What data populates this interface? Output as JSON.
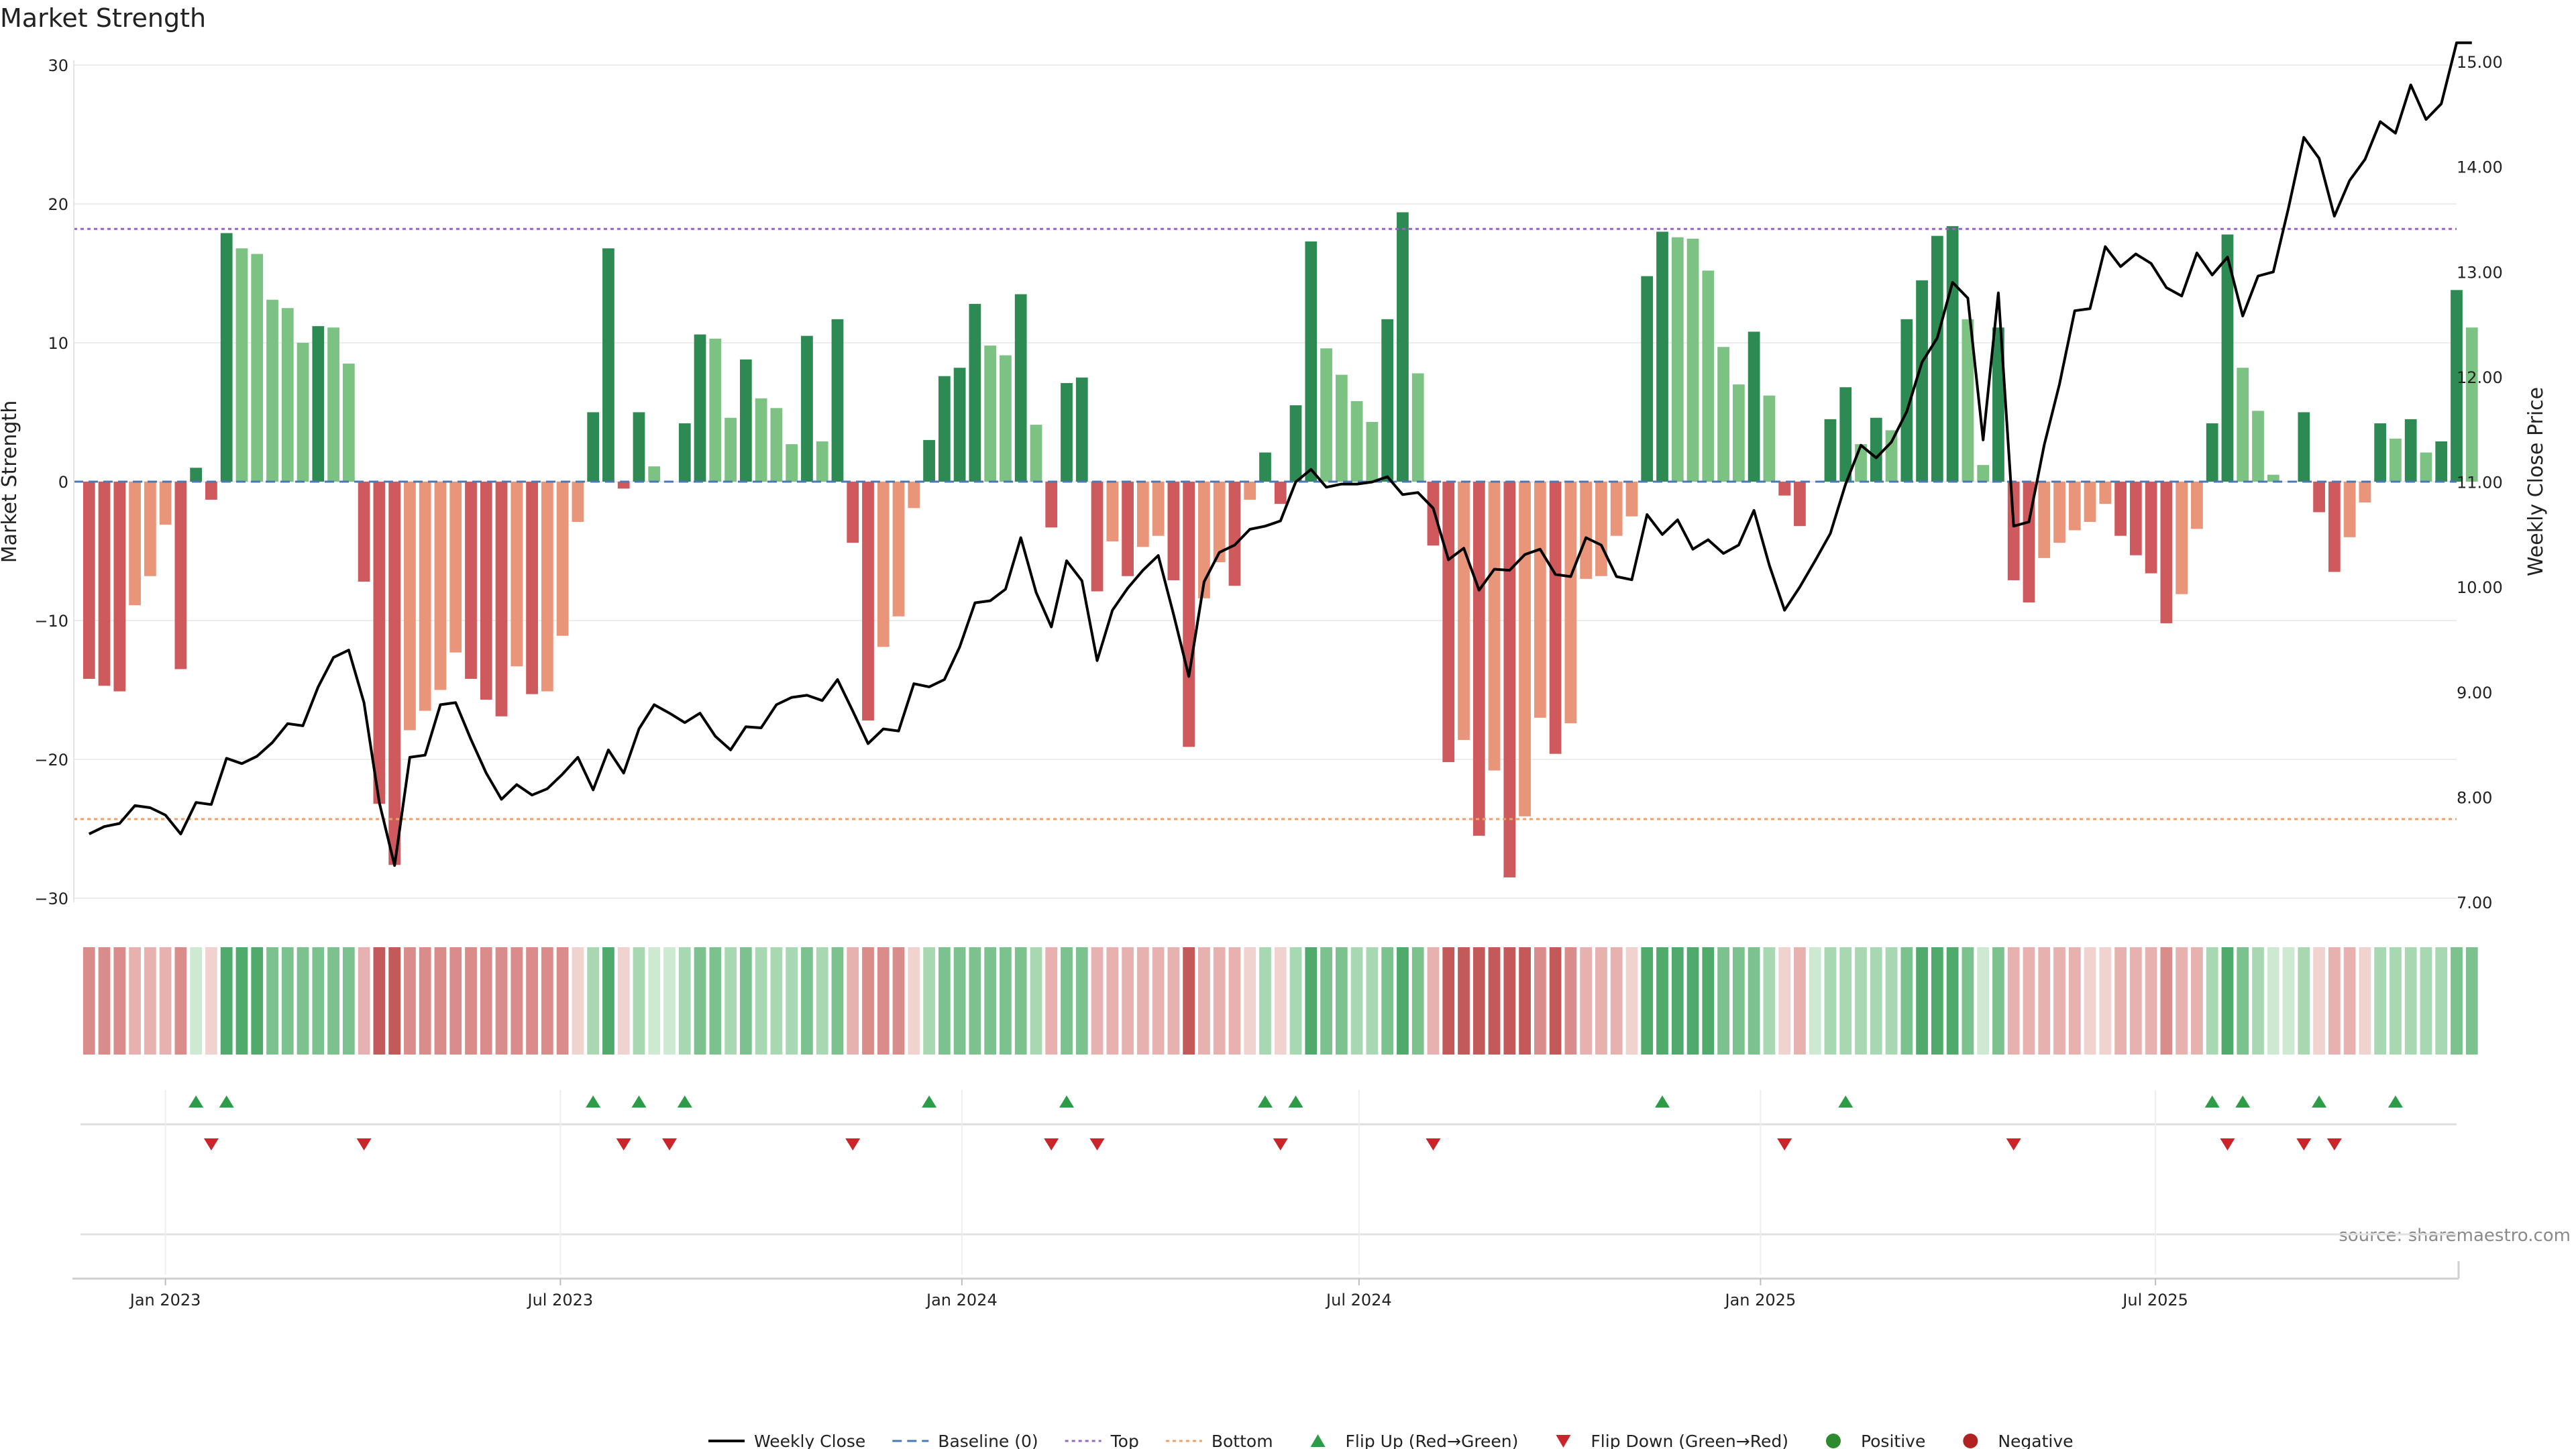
{
  "chart_data": {
    "type": "bar",
    "title": "Market Strength",
    "ylabel": "Market Strength",
    "y2label": "Weekly Close Price",
    "source": "source: sharemaestro.com",
    "ylim": [
      -30,
      30
    ],
    "y2lim": [
      7.0,
      15.0
    ],
    "yticks": [
      -30,
      -20,
      -10,
      0,
      10,
      20,
      30
    ],
    "yticklabels": [
      "−30",
      "−20",
      "−10",
      "0",
      "10",
      "20",
      "30"
    ],
    "y2ticks": [
      7.0,
      8.0,
      9.0,
      10.0,
      11.0,
      12.0,
      13.0,
      14.0,
      15.0
    ],
    "y2ticklabels": [
      "7.00",
      "8.00",
      "9.00",
      "10.00",
      "11.00",
      "12.00",
      "13.00",
      "14.00",
      "15.00"
    ],
    "xlim": [
      "2022-11-20",
      "2025-11-16"
    ],
    "xticks": [
      "2023-01-01",
      "2023-07-01",
      "2024-01-01",
      "2024-07-01",
      "2025-01-01",
      "2025-07-01"
    ],
    "xticklabels": [
      "Jan 2023",
      "Jul 2023",
      "Jan 2024",
      "Jul 2024",
      "Jan 2025",
      "Jul 2025"
    ],
    "start_week": "2022-11-27",
    "top_level": 18.2,
    "bottom_level": -24.3,
    "strength": [
      -14.2,
      -14.7,
      -15.1,
      -8.9,
      -6.8,
      -3.1,
      -13.5,
      1.0,
      -1.3,
      17.9,
      16.8,
      16.4,
      13.1,
      12.5,
      10.0,
      11.2,
      11.1,
      8.5,
      -7.2,
      -23.2,
      -27.6,
      -17.9,
      -16.5,
      -15.0,
      -12.3,
      -14.2,
      -15.7,
      -16.9,
      -13.3,
      -15.3,
      -15.1,
      -11.1,
      -2.9,
      5.0,
      16.8,
      -0.5,
      5.0,
      1.1,
      0.0,
      4.2,
      10.6,
      10.3,
      4.6,
      8.8,
      6.0,
      5.3,
      2.7,
      10.5,
      2.9,
      11.7,
      -4.4,
      -17.2,
      -11.9,
      -9.7,
      -1.9,
      3.0,
      7.6,
      8.2,
      12.8,
      9.8,
      9.1,
      13.5,
      4.1,
      -3.3,
      7.1,
      7.5,
      -7.9,
      -4.3,
      -6.8,
      -4.7,
      -3.9,
      -7.1,
      -19.1,
      -8.4,
      -5.8,
      -7.5,
      -1.3,
      2.1,
      -1.6,
      5.5,
      17.3,
      9.6,
      7.7,
      5.8,
      4.3,
      11.7,
      19.4,
      7.8,
      -4.6,
      -20.2,
      -18.6,
      -25.5,
      -20.8,
      -28.5,
      -24.1,
      -17.0,
      -19.6,
      -17.4,
      -7.0,
      -6.8,
      -3.9,
      -2.5,
      14.8,
      18.0,
      17.6,
      17.5,
      15.2,
      9.7,
      7.0,
      10.8,
      6.2,
      -1.0,
      -3.2,
      0.0,
      4.5,
      6.8,
      2.7,
      4.6,
      3.7,
      11.7,
      14.5,
      17.7,
      18.4,
      11.7,
      1.2,
      11.1,
      -7.1,
      -8.7,
      -5.5,
      -4.4,
      -3.5,
      -2.9,
      -1.6,
      -3.9,
      -5.3,
      -6.6,
      -10.2,
      -8.1,
      -3.4,
      4.2,
      17.8,
      8.2,
      5.1,
      0.5,
      0.0,
      5.0,
      -2.2,
      -6.5,
      -4.0,
      -1.5,
      4.2,
      3.1,
      4.5,
      2.1,
      2.9,
      13.8,
      11.1
    ],
    "close": [
      7.65,
      7.72,
      7.75,
      7.92,
      7.9,
      7.83,
      7.65,
      7.95,
      7.93,
      8.37,
      8.32,
      8.39,
      8.52,
      8.7,
      8.68,
      9.05,
      9.33,
      9.4,
      8.9,
      7.95,
      7.35,
      8.38,
      8.4,
      8.88,
      8.9,
      8.55,
      8.23,
      7.98,
      8.12,
      8.02,
      8.08,
      8.22,
      8.38,
      8.07,
      8.45,
      8.23,
      8.65,
      8.88,
      8.8,
      8.71,
      8.8,
      8.58,
      8.45,
      8.67,
      8.66,
      8.88,
      8.95,
      8.97,
      8.92,
      9.12,
      8.82,
      8.51,
      8.65,
      8.63,
      9.08,
      9.05,
      9.12,
      9.43,
      9.85,
      9.87,
      9.98,
      10.47,
      9.95,
      9.62,
      10.25,
      10.06,
      9.3,
      9.78,
      9.99,
      10.16,
      10.3,
      9.74,
      9.15,
      10.05,
      10.33,
      10.4,
      10.55,
      10.58,
      10.63,
      11.0,
      11.12,
      10.95,
      10.98,
      10.98,
      11.0,
      11.05,
      10.88,
      10.9,
      10.75,
      10.26,
      10.37,
      9.97,
      10.17,
      10.16,
      10.31,
      10.36,
      10.12,
      10.1,
      10.47,
      10.4,
      10.1,
      10.07,
      10.69,
      10.5,
      10.64,
      10.36,
      10.45,
      10.32,
      10.4,
      10.73,
      10.21,
      9.78,
      10.0,
      10.25,
      10.51,
      10.98,
      11.35,
      11.23,
      11.38,
      11.67,
      12.14,
      12.37,
      12.9,
      12.75,
      11.4,
      12.8,
      10.58,
      10.62,
      11.35,
      11.93,
      12.63,
      12.65,
      13.24,
      13.05,
      13.17,
      13.08,
      12.85,
      12.77,
      13.18,
      12.97,
      13.14,
      12.58,
      12.96,
      13.0,
      13.61,
      14.28,
      14.08,
      13.53,
      13.87,
      14.07,
      14.43,
      14.32,
      14.78,
      14.45,
      14.6,
      15.18,
      15.18
    ],
    "flip_up_idx": [
      7,
      9,
      33,
      36,
      39,
      55,
      64,
      77,
      79,
      103,
      115,
      139,
      141,
      146,
      151
    ],
    "flip_down_idx": [
      8,
      18,
      35,
      38,
      50,
      63,
      66,
      78,
      88,
      111,
      126,
      140,
      145,
      147
    ],
    "strip_colors": {
      "strong_negative": "#c4595a",
      "negative": "#d98c8a",
      "weak_negative": "#e6b1ae",
      "faint_negative": "#f0d2cf",
      "strong_positive": "#4faa6c",
      "positive": "#7cc28e",
      "weak_positive": "#a8d8b1",
      "faint_positive": "#cde9d2"
    },
    "bar_colors": {
      "strong_positive": "#2e8a53",
      "weak_positive": "#7cc283",
      "strong_negative": "#cf5a5d",
      "weak_negative": "#e8957a"
    },
    "line_color": "#000000",
    "top_color": "#9467bd",
    "bottom_color": "#e8a06e",
    "baseline_color": "#4a78b5",
    "flip_up_color": "#2e9b48",
    "flip_down_color": "#c8262a",
    "positive_color": "#2e8a2e",
    "negative_color": "#b22222",
    "grid": true,
    "legend_position": "bottom-center",
    "legend": [
      {
        "label": "Weekly Close",
        "kind": "line"
      },
      {
        "label": "Baseline (0)",
        "kind": "baseline"
      },
      {
        "label": "Top",
        "kind": "top"
      },
      {
        "label": "Bottom",
        "kind": "bottom"
      },
      {
        "label": "Flip Up (Red→Green)",
        "kind": "flip-up"
      },
      {
        "label": "Flip Down (Green→Red)",
        "kind": "flip-down"
      },
      {
        "label": "Positive",
        "kind": "positive"
      },
      {
        "label": "Negative",
        "kind": "negative"
      }
    ]
  }
}
